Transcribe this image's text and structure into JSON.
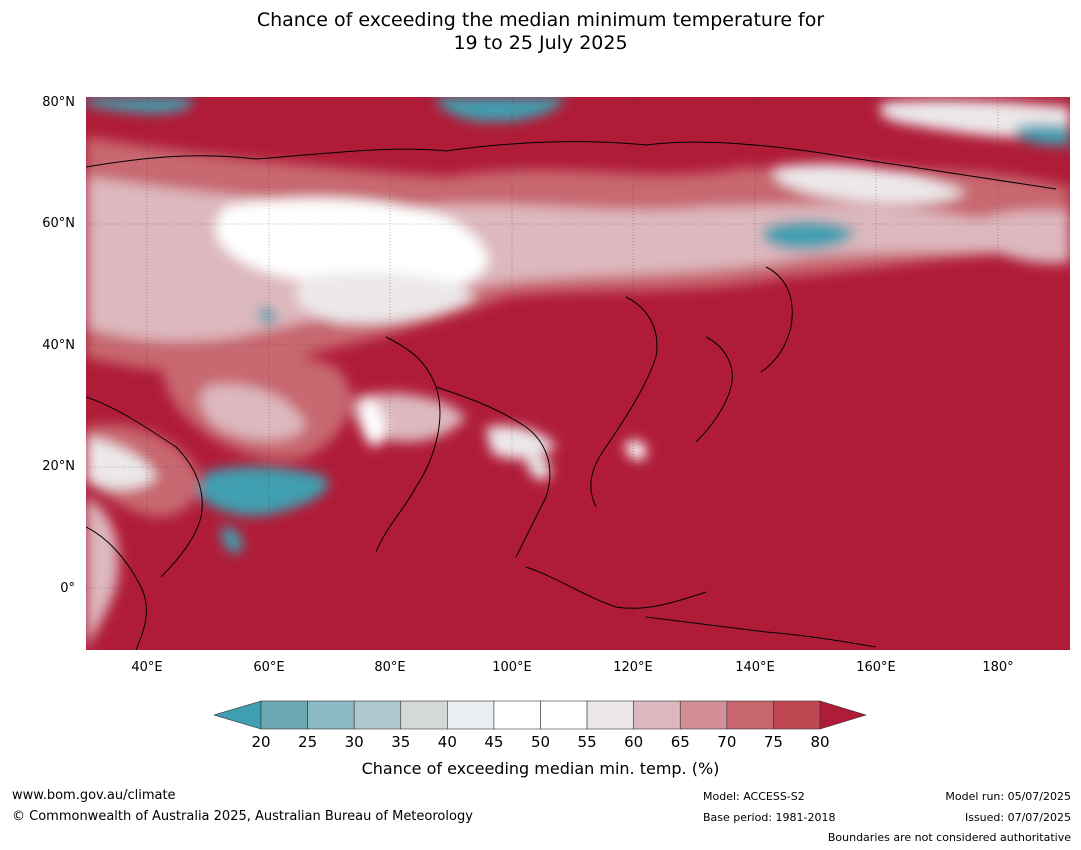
{
  "title": {
    "line1": "Chance of exceeding the median minimum temperature for",
    "line2": "19 to 25 July 2025"
  },
  "map": {
    "region": "Asia",
    "projection": "equirectangular",
    "lon_range": [
      30,
      192
    ],
    "lat_range": [
      -10,
      81
    ],
    "gridlines": true,
    "lat_labels": [
      "80°N",
      "60°N",
      "40°N",
      "20°N",
      "0°"
    ],
    "lon_labels": [
      "40°E",
      "60°E",
      "80°E",
      "100°E",
      "120°E",
      "140°E",
      "160°E",
      "180°"
    ]
  },
  "colorbar": {
    "ticks": [
      "20",
      "25",
      "30",
      "35",
      "40",
      "45",
      "50",
      "55",
      "60",
      "65",
      "70",
      "75",
      "80"
    ],
    "colors": [
      "#6aa8b3",
      "#8bb9c4",
      "#afc6cc",
      "#d4d8d9",
      "#e9eff1",
      "#ffffff",
      "#ffffff",
      "#ece8ea",
      "#ddb8be",
      "#d38f98",
      "#c8676f",
      "#bf4853"
    ],
    "under_color": "#3f9fb0",
    "over_color": "#b01c38",
    "label": "Chance of exceeding median min. temp. (%)"
  },
  "footer": {
    "website": "www.bom.gov.au/climate",
    "copyright": "© Commonwealth of Australia 2025, Australian Bureau of Meteorology",
    "model": "Model: ACCESS-S2",
    "base_period": "Base period: 1981-2018",
    "model_run": "Model run: 05/07/2025",
    "issued": "Issued: 07/07/2025",
    "disclaimer": "Boundaries are not considered authoritative"
  }
}
